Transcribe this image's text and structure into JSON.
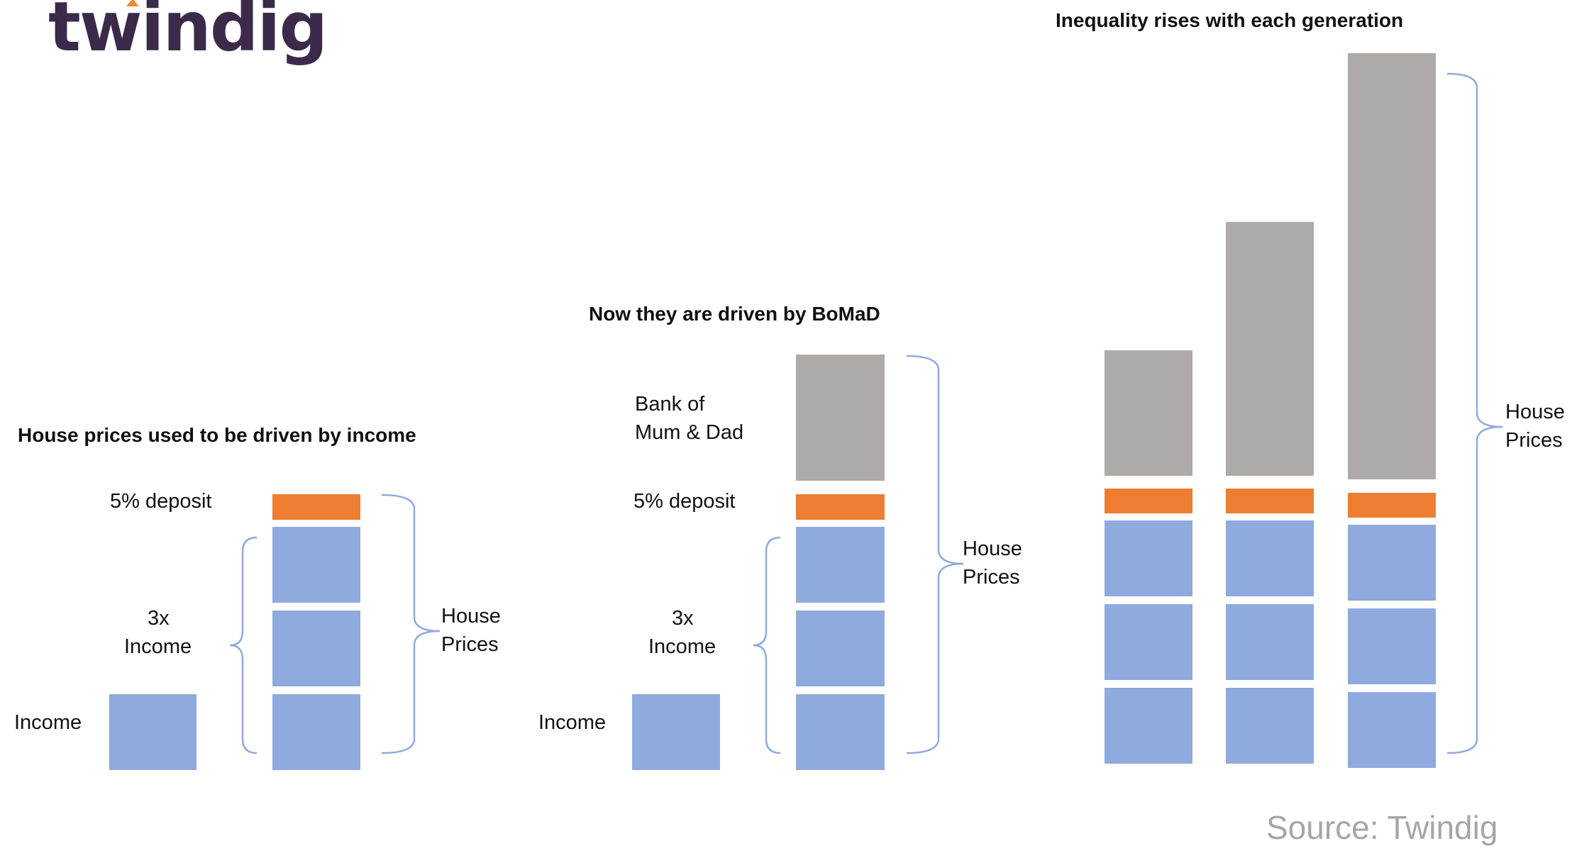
{
  "logo": {
    "text": "twindig",
    "accent": "#f08a3a"
  },
  "panel1": {
    "title": "House prices used to be driven by income",
    "deposit_label": "5% deposit",
    "multiple_label_1": "3x",
    "multiple_label_2": "Income",
    "income_label": "Income",
    "house_label_1": "House",
    "house_label_2": "Prices"
  },
  "panel2": {
    "title": "Now they are driven by BoMaD",
    "bomad_label_1": "Bank of",
    "bomad_label_2": "Mum & Dad",
    "deposit_label": "5% deposit",
    "multiple_label_1": "3x",
    "multiple_label_2": "Income",
    "income_label": "Income",
    "house_label_1": "House",
    "house_label_2": "Prices"
  },
  "panel3": {
    "title": "Inequality rises with each generation",
    "house_label_1": "House",
    "house_label_2": "Prices"
  },
  "source": "Source: Twindig",
  "colors": {
    "income": "#8faadc",
    "deposit": "#ed7d31",
    "bomad": "#aeaaaa",
    "brace": "#8faadc"
  }
}
